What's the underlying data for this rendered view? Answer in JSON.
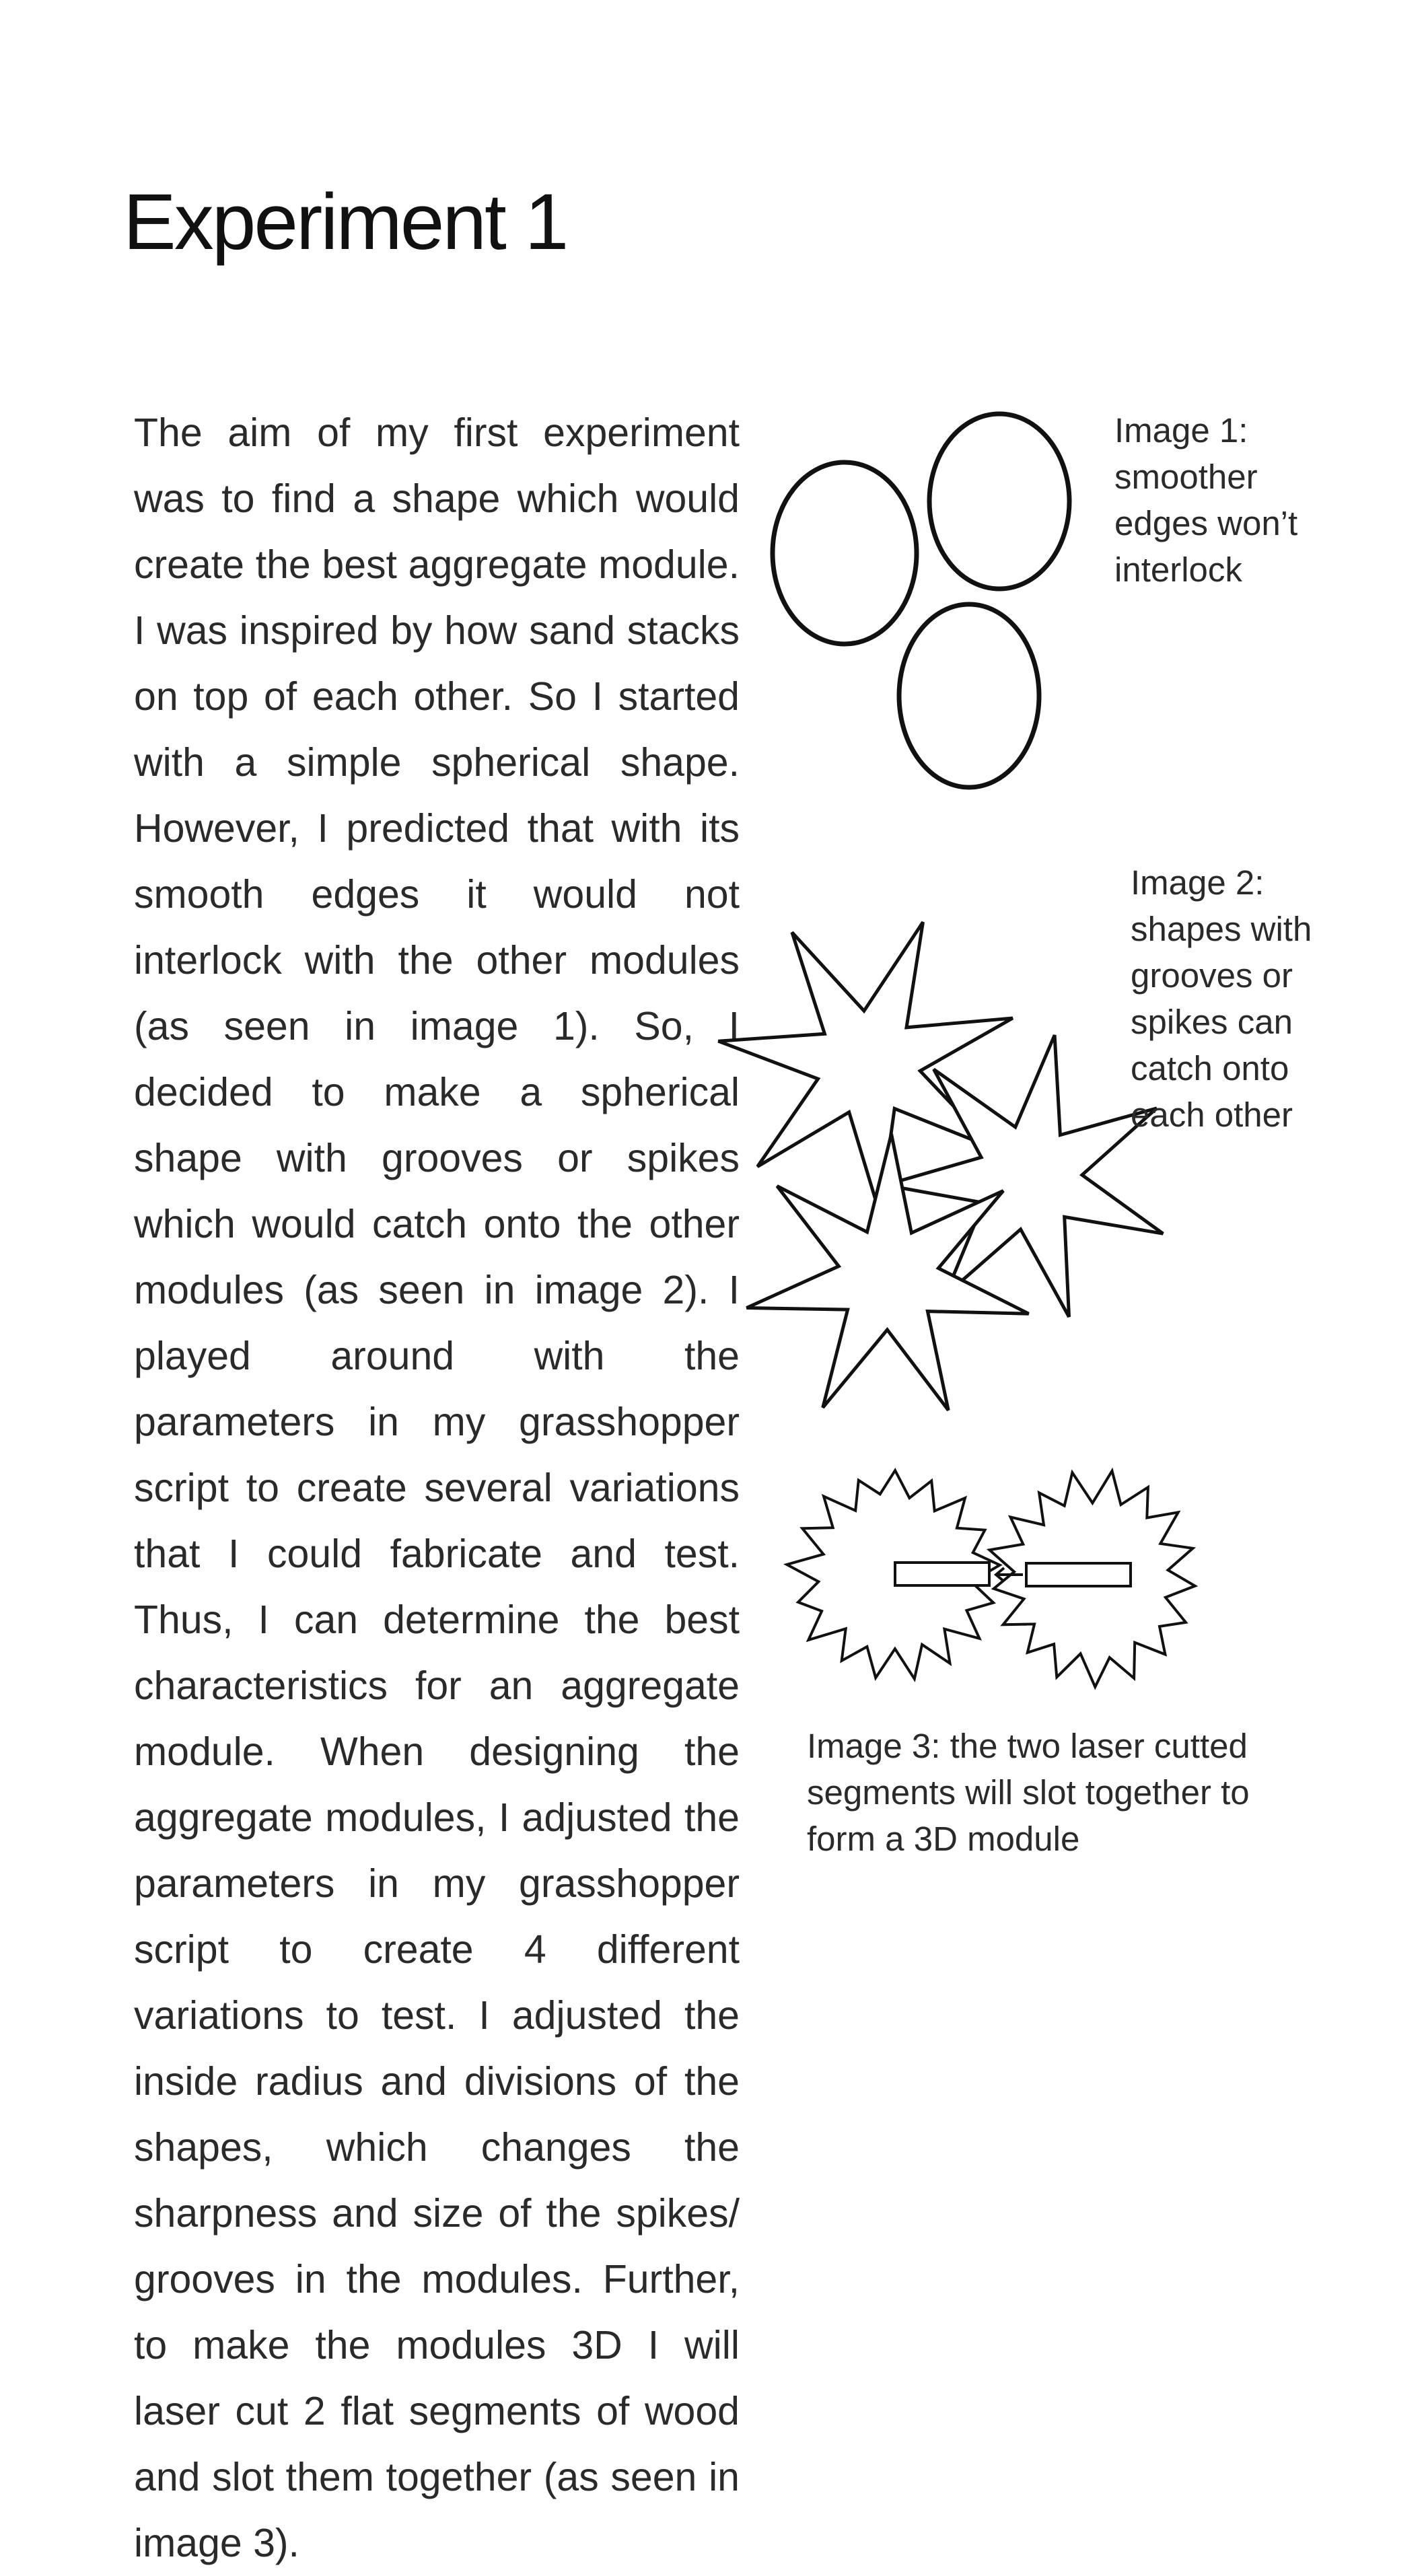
{
  "page": {
    "title": "Experiment 1",
    "body_paragraph": "The aim of my first experiment was to find a shape which would create the best aggregate module. I was inspired by how sand stacks on top of each oth­er. So I started with a simple spherical shape. However, I predicted that with its smooth edges it would not interlock with the other modules (as seen in im­age 1). So, I decided to make a spheri­cal shape with grooves or spikes which would catch onto the other modules (as seen in image 2). I played around with the parameters in my grasshopper script to create several variations that I could fabricate and test. Thus, I can determine the best characteristics for an aggregate module. When design­ing the aggregate modules, I adjust­ed the parameters in my grasshopper script to create 4 different variations to test. I adjusted the inside radius and divisions of the shapes, which changes the sharpness and size of the spikes/ grooves in the modules. Further, to make the modules 3D I will laser cut 2 flat segments of wood and slot them together (as seen in image 3)."
  },
  "images": [
    {
      "caption": "Image 1: smoother edges won’t interlock",
      "depicts": "three-ovals-icon"
    },
    {
      "caption": "Image 2: shapes with grooves or spikes can catch onto each other",
      "depicts": "three-spiked-stars-icon"
    },
    {
      "caption": "Image 3: the two laser cutted segments will slot together to form a 3D module",
      "depicts": "two-slotted-gears-icon"
    }
  ],
  "colors": {
    "text": "#2a2a2a",
    "line": "#111111",
    "background": "#ffffff"
  }
}
